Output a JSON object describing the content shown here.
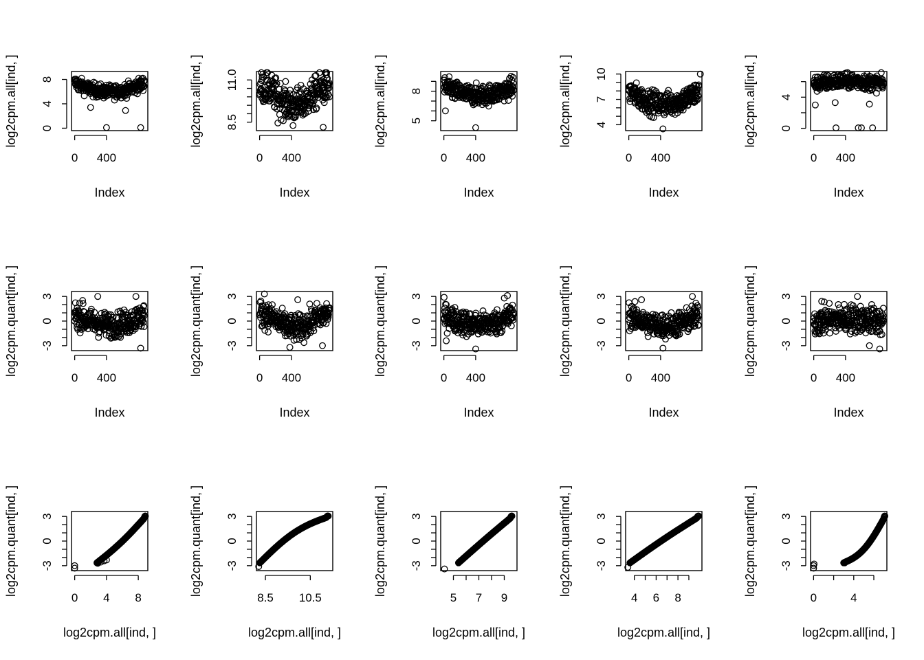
{
  "figure": {
    "layout": "3 rows x 5 columns of base-R scatter plots",
    "background": "#ffffff",
    "ink": "#000000"
  },
  "chart_data": [
    {
      "type": "scatter",
      "panel": "r1c1",
      "xlabel": "Index",
      "ylabel": "log2cpm.all[ind, ]",
      "xlim": [
        -40,
        920
      ],
      "ylim": [
        -0.4,
        9.3
      ],
      "xticks": [
        0,
        400
      ],
      "xtick_labels": [
        "0",
        "400"
      ],
      "yticks": [
        0,
        4,
        8
      ],
      "ytick_labels": [
        "0",
        "4",
        "8"
      ],
      "pattern": "index",
      "n": 880,
      "base": 6.5,
      "shape": "u",
      "amp": 1.5,
      "noise": 0.55,
      "outliers": [
        [
          400,
          0.1
        ],
        [
          830,
          0.1
        ],
        [
          200,
          3.4
        ],
        [
          640,
          2.9
        ]
      ]
    },
    {
      "type": "scatter",
      "panel": "r1c2",
      "xlabel": "Index",
      "ylabel": "log2cpm.all[ind, ]",
      "xlim": [
        -40,
        920
      ],
      "ylim": [
        8.0,
        11.5
      ],
      "xticks": [
        0,
        400
      ],
      "xtick_labels": [
        "0",
        "400"
      ],
      "yticks": [
        8.5,
        9.0,
        9.5,
        10.0,
        10.5,
        11.0
      ],
      "ytick_labels": [
        "8.5",
        "",
        "",
        "",
        "",
        "11.0"
      ],
      "pattern": "index",
      "n": 880,
      "base": 10.05,
      "shape": "wave",
      "amp": 0.55,
      "noise": 0.48,
      "outliers": [
        [
          420,
          8.3
        ],
        [
          800,
          8.2
        ],
        [
          230,
          8.45
        ]
      ]
    },
    {
      "type": "scatter",
      "panel": "r1c3",
      "xlabel": "Index",
      "ylabel": "log2cpm.all[ind, ]",
      "xlim": [
        -40,
        920
      ],
      "ylim": [
        4.0,
        10.0
      ],
      "xticks": [
        0,
        400
      ],
      "xtick_labels": [
        "0",
        "400"
      ],
      "yticks": [
        5,
        6,
        7,
        8,
        9
      ],
      "ytick_labels": [
        "5",
        "",
        "",
        "8",
        ""
      ],
      "pattern": "index",
      "n": 880,
      "base": 7.9,
      "shape": "u",
      "amp": 0.9,
      "noise": 0.5,
      "outliers": [
        [
          400,
          4.3
        ],
        [
          20,
          6.0
        ]
      ]
    },
    {
      "type": "scatter",
      "panel": "r1c4",
      "xlabel": "Index",
      "ylabel": "log2cpm.all[ind, ]",
      "xlim": [
        -40,
        920
      ],
      "ylim": [
        3.3,
        10.3
      ],
      "xticks": [
        0,
        400
      ],
      "xtick_labels": [
        "0",
        "400"
      ],
      "yticks": [
        4,
        5,
        6,
        7,
        8,
        9,
        10
      ],
      "ytick_labels": [
        "4",
        "",
        "",
        "7",
        "",
        "",
        "10"
      ],
      "pattern": "index",
      "n": 880,
      "base": 7.0,
      "shape": "u",
      "amp": 1.5,
      "noise": 0.7,
      "outliers": [
        [
          430,
          3.5
        ],
        [
          900,
          10.0
        ]
      ]
    },
    {
      "type": "scatter",
      "panel": "r1c5",
      "xlabel": "Index",
      "ylabel": "log2cpm.all[ind, ]",
      "xlim": [
        -40,
        920
      ],
      "ylim": [
        -0.3,
        7.3
      ],
      "xticks": [
        0,
        400
      ],
      "xtick_labels": [
        "0",
        "400"
      ],
      "yticks": [
        0,
        2,
        4,
        6
      ],
      "ytick_labels": [
        "0",
        "",
        "4",
        ""
      ],
      "pattern": "index",
      "n": 880,
      "base": 5.7,
      "shape": "hill",
      "amp": 0.4,
      "noise": 0.5,
      "outliers": [
        [
          280,
          0.05
        ],
        [
          560,
          0.05
        ],
        [
          600,
          0.05
        ],
        [
          740,
          0.05
        ],
        [
          20,
          3.0
        ],
        [
          700,
          3.1
        ],
        [
          270,
          3.3
        ]
      ]
    },
    {
      "type": "scatter",
      "panel": "r2c1",
      "xlabel": "Index",
      "ylabel": "log2cpm.quant[ind, ]",
      "xlim": [
        -40,
        920
      ],
      "ylim": [
        -3.6,
        3.6
      ],
      "xticks": [
        0,
        400
      ],
      "xtick_labels": [
        "0",
        "400"
      ],
      "yticks": [
        -3,
        -2,
        -1,
        0,
        1,
        2,
        3
      ],
      "ytick_labels": [
        "-3",
        "",
        "",
        "0",
        "",
        "",
        "3"
      ],
      "pattern": "index",
      "n": 880,
      "base": 0.0,
      "shape": "u",
      "amp": 1.3,
      "noise": 0.75,
      "outliers": [
        [
          830,
          -3.3
        ],
        [
          770,
          3.0
        ],
        [
          290,
          3.0
        ],
        [
          100,
          2.5
        ]
      ]
    },
    {
      "type": "scatter",
      "panel": "r2c2",
      "xlabel": "Index",
      "ylabel": "log2cpm.quant[ind, ]",
      "xlim": [
        -40,
        920
      ],
      "ylim": [
        -3.6,
        3.6
      ],
      "xticks": [
        0,
        400
      ],
      "xtick_labels": [
        "0",
        "400"
      ],
      "yticks": [
        -3,
        -2,
        -1,
        0,
        1,
        2,
        3
      ],
      "ytick_labels": [
        "-3",
        "",
        "",
        "0",
        "",
        "",
        "3"
      ],
      "pattern": "index",
      "n": 880,
      "base": 0.0,
      "shape": "wave",
      "amp": 0.9,
      "noise": 0.8,
      "outliers": [
        [
          60,
          3.3
        ],
        [
          380,
          -3.2
        ],
        [
          790,
          -3.0
        ],
        [
          480,
          2.6
        ]
      ]
    },
    {
      "type": "scatter",
      "panel": "r2c3",
      "xlabel": "Index",
      "ylabel": "log2cpm.quant[ind, ]",
      "xlim": [
        -40,
        920
      ],
      "ylim": [
        -3.6,
        3.6
      ],
      "xticks": [
        0,
        400
      ],
      "xtick_labels": [
        "0",
        "400"
      ],
      "yticks": [
        -3,
        -2,
        -1,
        0,
        1,
        2,
        3
      ],
      "ytick_labels": [
        "-3",
        "",
        "",
        "0",
        "",
        "",
        "3"
      ],
      "pattern": "index",
      "n": 880,
      "base": 0.0,
      "shape": "u",
      "amp": 1.2,
      "noise": 0.75,
      "outliers": [
        [
          400,
          -3.4
        ],
        [
          30,
          -2.4
        ],
        [
          800,
          3.1
        ],
        [
          760,
          2.8
        ]
      ]
    },
    {
      "type": "scatter",
      "panel": "r2c4",
      "xlabel": "Index",
      "ylabel": "log2cpm.quant[ind, ]",
      "xlim": [
        -40,
        920
      ],
      "ylim": [
        -3.6,
        3.6
      ],
      "xticks": [
        0,
        400
      ],
      "xtick_labels": [
        "0",
        "400"
      ],
      "yticks": [
        -3,
        -2,
        -1,
        0,
        1,
        2,
        3
      ],
      "ytick_labels": [
        "-3",
        "",
        "",
        "0",
        "",
        "",
        "3"
      ],
      "pattern": "index",
      "n": 880,
      "base": -0.1,
      "shape": "u",
      "amp": 1.3,
      "noise": 0.75,
      "outliers": [
        [
          430,
          -3.3
        ],
        [
          800,
          3.0
        ],
        [
          160,
          2.6
        ]
      ]
    },
    {
      "type": "scatter",
      "panel": "r2c5",
      "xlabel": "Index",
      "ylabel": "log2cpm.quant[ind, ]",
      "xlim": [
        -40,
        920
      ],
      "ylim": [
        -3.6,
        3.6
      ],
      "xticks": [
        0,
        400
      ],
      "xtick_labels": [
        "0",
        "400"
      ],
      "yticks": [
        -3,
        -2,
        -1,
        0,
        1,
        2,
        3
      ],
      "ytick_labels": [
        "-3",
        "",
        "",
        "0",
        "",
        "",
        "3"
      ],
      "pattern": "index",
      "n": 880,
      "base": -0.1,
      "shape": "hill",
      "amp": 0.4,
      "noise": 0.85,
      "outliers": [
        [
          830,
          -3.4
        ],
        [
          550,
          3.0
        ],
        [
          700,
          -3.0
        ],
        [
          100,
          2.4
        ]
      ]
    },
    {
      "type": "scatter",
      "panel": "r3c1",
      "xlabel": "log2cpm.all[ind, ]",
      "ylabel": "log2cpm.quant[ind, ]",
      "xlim": [
        -0.4,
        9.2
      ],
      "ylim": [
        -3.6,
        3.6
      ],
      "xticks": [
        0,
        4,
        8
      ],
      "xtick_labels": [
        "0",
        "4",
        "8"
      ],
      "yticks": [
        -3,
        -2,
        -1,
        0,
        1,
        2,
        3
      ],
      "ytick_labels": [
        "-3",
        "",
        "",
        "0",
        "",
        "",
        "3"
      ],
      "pattern": "qq",
      "qq_range": [
        2.8,
        8.9
      ],
      "qq_bend": -0.25,
      "outliers": [
        [
          0.0,
          -3.3
        ],
        [
          0.0,
          -3.0
        ],
        [
          2.9,
          -2.7
        ],
        [
          3.3,
          -2.55
        ],
        [
          3.7,
          -2.4
        ],
        [
          4.0,
          -2.3
        ]
      ]
    },
    {
      "type": "scatter",
      "panel": "r3c2",
      "xlabel": "log2cpm.all[ind, ]",
      "ylabel": "log2cpm.quant[ind, ]",
      "xlim": [
        8.1,
        11.5
      ],
      "ylim": [
        -3.6,
        3.6
      ],
      "xticks": [
        8.5,
        10.5
      ],
      "xtick_labels": [
        "8.5",
        "10.5"
      ],
      "yticks": [
        -3,
        -2,
        -1,
        0,
        1,
        2,
        3
      ],
      "ytick_labels": [
        "-3",
        "",
        "",
        "0",
        "",
        "",
        "3"
      ],
      "pattern": "qq",
      "qq_range": [
        8.25,
        11.3
      ],
      "qq_bend": 0.7,
      "outliers": [
        [
          8.2,
          -3.1
        ]
      ]
    },
    {
      "type": "scatter",
      "panel": "r3c3",
      "xlabel": "log2cpm.all[ind, ]",
      "ylabel": "log2cpm.quant[ind, ]",
      "xlim": [
        4.0,
        10.0
      ],
      "ylim": [
        -3.6,
        3.6
      ],
      "xticks": [
        5,
        6,
        7,
        8,
        9
      ],
      "xtick_labels": [
        "5",
        "",
        "7",
        "",
        "9"
      ],
      "yticks": [
        -3,
        -2,
        -1,
        0,
        1,
        2,
        3
      ],
      "ytick_labels": [
        "-3",
        "",
        "",
        "0",
        "",
        "",
        "3"
      ],
      "pattern": "qq",
      "qq_range": [
        5.4,
        9.6
      ],
      "qq_bend": 0.05,
      "outliers": [
        [
          4.3,
          -3.4
        ]
      ]
    },
    {
      "type": "scatter",
      "panel": "r3c4",
      "xlabel": "log2cpm.all[ind, ]",
      "ylabel": "log2cpm.quant[ind, ]",
      "xlim": [
        3.2,
        10.2
      ],
      "ylim": [
        -3.6,
        3.6
      ],
      "xticks": [
        4,
        5,
        6,
        7,
        8,
        9
      ],
      "xtick_labels": [
        "4",
        "",
        "6",
        "",
        "8",
        ""
      ],
      "yticks": [
        -3,
        -2,
        -1,
        0,
        1,
        2,
        3
      ],
      "ytick_labels": [
        "-3",
        "",
        "",
        "0",
        "",
        "",
        "3"
      ],
      "pattern": "qq",
      "qq_range": [
        3.6,
        9.9
      ],
      "qq_bend": 0.1,
      "outliers": [
        [
          3.4,
          -3.2
        ]
      ]
    },
    {
      "type": "scatter",
      "panel": "r3c5",
      "xlabel": "log2cpm.all[ind, ]",
      "ylabel": "log2cpm.quant[ind, ]",
      "xlim": [
        -0.3,
        7.3
      ],
      "ylim": [
        -3.6,
        3.6
      ],
      "xticks": [
        0,
        2,
        4,
        6
      ],
      "xtick_labels": [
        "0",
        "",
        "4",
        ""
      ],
      "yticks": [
        -3,
        -2,
        -1,
        0,
        1,
        2,
        3
      ],
      "ytick_labels": [
        "-3",
        "",
        "",
        "0",
        "",
        "",
        "3"
      ],
      "pattern": "qq",
      "qq_range": [
        3.0,
        7.1
      ],
      "qq_bend": -0.9,
      "outliers": [
        [
          0.0,
          -3.3
        ],
        [
          0.0,
          -3.0
        ],
        [
          0.05,
          -2.8
        ],
        [
          3.1,
          -2.65
        ]
      ]
    }
  ]
}
